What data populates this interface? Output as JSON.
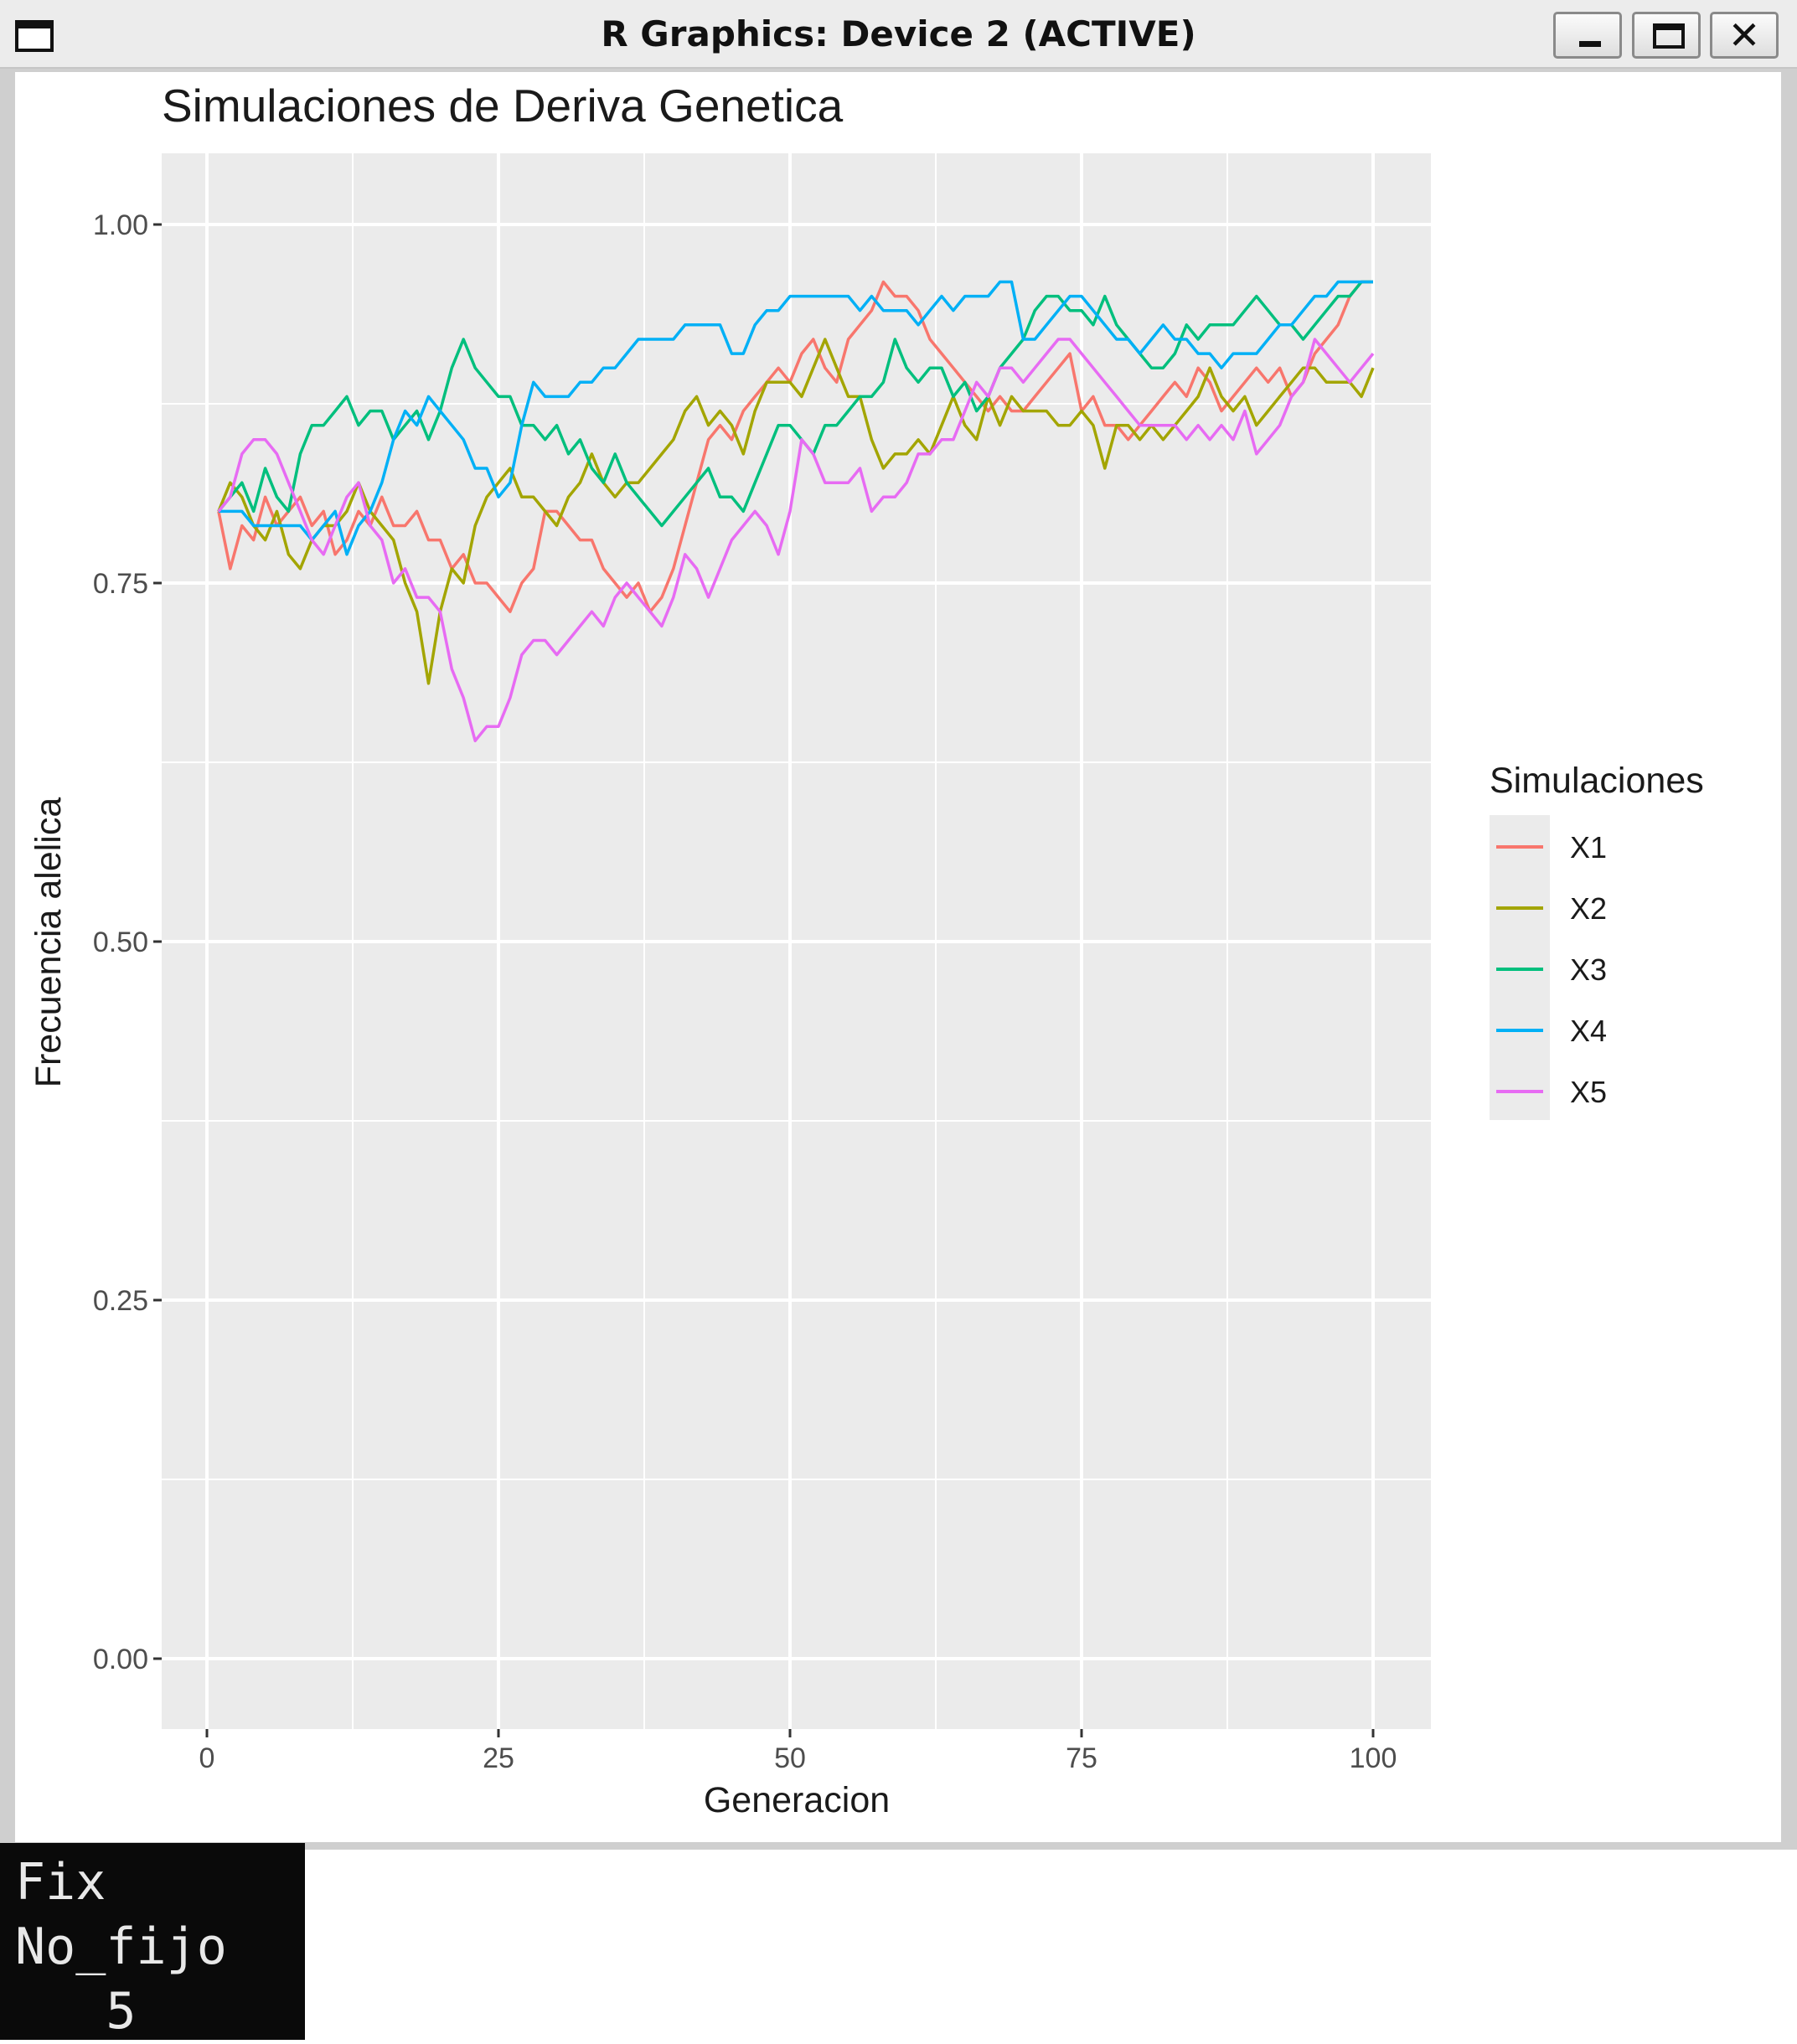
{
  "window": {
    "title": "R Graphics: Device 2 (ACTIVE)",
    "buttons": {
      "minimize": "minimize",
      "maximize": "maximize",
      "close": "✕"
    }
  },
  "terminal": {
    "lines": [
      "Fix",
      "No_fijo",
      "   5"
    ]
  },
  "colors": {
    "panel": "#EBEBEB",
    "grid": "#FFFFFF",
    "X1": "#F8766D",
    "X2": "#A3A500",
    "X3": "#00BF7D",
    "X4": "#00B0F6",
    "X5": "#E76BF3"
  },
  "chart_data": {
    "type": "line",
    "title": "Simulaciones de Deriva Genetica",
    "xlabel": "Generacion",
    "ylabel": "Frecuencia alelica",
    "xlim": [
      0,
      100
    ],
    "ylim": [
      0,
      1
    ],
    "xticks": [
      "0",
      "25",
      "50",
      "75",
      "100"
    ],
    "yticks": [
      "0.00",
      "0.25",
      "0.50",
      "0.75",
      "1.00"
    ],
    "grid": true,
    "legend": {
      "title": "Simulaciones",
      "position": "right"
    },
    "series": [
      {
        "name": "X1",
        "color": "#F8766D",
        "x": [
          1,
          2,
          3,
          4,
          5,
          6,
          7,
          8,
          9,
          10,
          11,
          12,
          13,
          14,
          15,
          16,
          17,
          18,
          19,
          20,
          21,
          22,
          23,
          24,
          25,
          26,
          27,
          28,
          29,
          30,
          31,
          32,
          33,
          34,
          35,
          36,
          37,
          38,
          39,
          40,
          41,
          42,
          43,
          44,
          45,
          46,
          47,
          48,
          49,
          50,
          51,
          52,
          53,
          54,
          55,
          56,
          57,
          58,
          59,
          60,
          61,
          62,
          63,
          64,
          65,
          66,
          67,
          68,
          69,
          70,
          71,
          72,
          73,
          74,
          75,
          76,
          77,
          78,
          79,
          80,
          81,
          82,
          83,
          84,
          85,
          86,
          87,
          88,
          89,
          90,
          91,
          92,
          93,
          94,
          95,
          96,
          97,
          98,
          99,
          100
        ],
        "y": [
          0.8,
          0.76,
          0.79,
          0.78,
          0.81,
          0.79,
          0.8,
          0.81,
          0.79,
          0.8,
          0.77,
          0.78,
          0.8,
          0.79,
          0.81,
          0.79,
          0.79,
          0.8,
          0.78,
          0.78,
          0.76,
          0.77,
          0.75,
          0.75,
          0.74,
          0.73,
          0.75,
          0.76,
          0.8,
          0.8,
          0.79,
          0.78,
          0.78,
          0.76,
          0.75,
          0.74,
          0.75,
          0.73,
          0.74,
          0.76,
          0.79,
          0.82,
          0.85,
          0.86,
          0.85,
          0.87,
          0.88,
          0.89,
          0.9,
          0.89,
          0.91,
          0.92,
          0.9,
          0.89,
          0.92,
          0.93,
          0.94,
          0.96,
          0.95,
          0.95,
          0.94,
          0.92,
          0.91,
          0.9,
          0.89,
          0.88,
          0.87,
          0.88,
          0.87,
          0.87,
          0.88,
          0.89,
          0.9,
          0.91,
          0.87,
          0.88,
          0.86,
          0.86,
          0.85,
          0.86,
          0.87,
          0.88,
          0.89,
          0.88,
          0.9,
          0.89,
          0.87,
          0.88,
          0.89,
          0.9,
          0.89,
          0.9,
          0.88,
          0.89,
          0.91,
          0.92,
          0.93,
          0.95,
          0.96,
          0.96
        ]
      },
      {
        "name": "X2",
        "color": "#A3A500",
        "x": [
          1,
          2,
          3,
          4,
          5,
          6,
          7,
          8,
          9,
          10,
          11,
          12,
          13,
          14,
          15,
          16,
          17,
          18,
          19,
          20,
          21,
          22,
          23,
          24,
          25,
          26,
          27,
          28,
          29,
          30,
          31,
          32,
          33,
          34,
          35,
          36,
          37,
          38,
          39,
          40,
          41,
          42,
          43,
          44,
          45,
          46,
          47,
          48,
          49,
          50,
          51,
          52,
          53,
          54,
          55,
          56,
          57,
          58,
          59,
          60,
          61,
          62,
          63,
          64,
          65,
          66,
          67,
          68,
          69,
          70,
          71,
          72,
          73,
          74,
          75,
          76,
          77,
          78,
          79,
          80,
          81,
          82,
          83,
          84,
          85,
          86,
          87,
          88,
          89,
          90,
          91,
          92,
          93,
          94,
          95,
          96,
          97,
          98,
          99,
          100
        ],
        "y": [
          0.8,
          0.82,
          0.81,
          0.79,
          0.78,
          0.8,
          0.77,
          0.76,
          0.78,
          0.79,
          0.79,
          0.8,
          0.82,
          0.8,
          0.79,
          0.78,
          0.75,
          0.73,
          0.68,
          0.73,
          0.76,
          0.75,
          0.79,
          0.81,
          0.82,
          0.83,
          0.81,
          0.81,
          0.8,
          0.79,
          0.81,
          0.82,
          0.84,
          0.82,
          0.81,
          0.82,
          0.82,
          0.83,
          0.84,
          0.85,
          0.87,
          0.88,
          0.86,
          0.87,
          0.86,
          0.84,
          0.87,
          0.89,
          0.89,
          0.89,
          0.88,
          0.9,
          0.92,
          0.9,
          0.88,
          0.88,
          0.85,
          0.83,
          0.84,
          0.84,
          0.85,
          0.84,
          0.86,
          0.88,
          0.86,
          0.85,
          0.88,
          0.86,
          0.88,
          0.87,
          0.87,
          0.87,
          0.86,
          0.86,
          0.87,
          0.86,
          0.83,
          0.86,
          0.86,
          0.85,
          0.86,
          0.85,
          0.86,
          0.87,
          0.88,
          0.9,
          0.88,
          0.87,
          0.88,
          0.86,
          0.87,
          0.88,
          0.89,
          0.9,
          0.9,
          0.89,
          0.89,
          0.89,
          0.88,
          0.9
        ]
      },
      {
        "name": "X3",
        "color": "#00BF7D",
        "x": [
          1,
          2,
          3,
          4,
          5,
          6,
          7,
          8,
          9,
          10,
          11,
          12,
          13,
          14,
          15,
          16,
          17,
          18,
          19,
          20,
          21,
          22,
          23,
          24,
          25,
          26,
          27,
          28,
          29,
          30,
          31,
          32,
          33,
          34,
          35,
          36,
          37,
          38,
          39,
          40,
          41,
          42,
          43,
          44,
          45,
          46,
          47,
          48,
          49,
          50,
          51,
          52,
          53,
          54,
          55,
          56,
          57,
          58,
          59,
          60,
          61,
          62,
          63,
          64,
          65,
          66,
          67,
          68,
          69,
          70,
          71,
          72,
          73,
          74,
          75,
          76,
          77,
          78,
          79,
          80,
          81,
          82,
          83,
          84,
          85,
          86,
          87,
          88,
          89,
          90,
          91,
          92,
          93,
          94,
          95,
          96,
          97,
          98,
          99,
          100
        ],
        "y": [
          0.8,
          0.81,
          0.82,
          0.8,
          0.83,
          0.81,
          0.8,
          0.84,
          0.86,
          0.86,
          0.87,
          0.88,
          0.86,
          0.87,
          0.87,
          0.85,
          0.86,
          0.87,
          0.85,
          0.87,
          0.9,
          0.92,
          0.9,
          0.89,
          0.88,
          0.88,
          0.86,
          0.86,
          0.85,
          0.86,
          0.84,
          0.85,
          0.83,
          0.82,
          0.84,
          0.82,
          0.81,
          0.8,
          0.79,
          0.8,
          0.81,
          0.82,
          0.83,
          0.81,
          0.81,
          0.8,
          0.82,
          0.84,
          0.86,
          0.86,
          0.85,
          0.84,
          0.86,
          0.86,
          0.87,
          0.88,
          0.88,
          0.89,
          0.92,
          0.9,
          0.89,
          0.9,
          0.9,
          0.88,
          0.89,
          0.87,
          0.88,
          0.9,
          0.91,
          0.92,
          0.94,
          0.95,
          0.95,
          0.94,
          0.94,
          0.93,
          0.95,
          0.93,
          0.92,
          0.91,
          0.9,
          0.9,
          0.91,
          0.93,
          0.92,
          0.93,
          0.93,
          0.93,
          0.94,
          0.95,
          0.94,
          0.93,
          0.93,
          0.92,
          0.93,
          0.94,
          0.95,
          0.95,
          0.96,
          0.96
        ]
      },
      {
        "name": "X4",
        "color": "#00B0F6",
        "x": [
          1,
          2,
          3,
          4,
          5,
          6,
          7,
          8,
          9,
          10,
          11,
          12,
          13,
          14,
          15,
          16,
          17,
          18,
          19,
          20,
          21,
          22,
          23,
          24,
          25,
          26,
          27,
          28,
          29,
          30,
          31,
          32,
          33,
          34,
          35,
          36,
          37,
          38,
          39,
          40,
          41,
          42,
          43,
          44,
          45,
          46,
          47,
          48,
          49,
          50,
          51,
          52,
          53,
          54,
          55,
          56,
          57,
          58,
          59,
          60,
          61,
          62,
          63,
          64,
          65,
          66,
          67,
          68,
          69,
          70,
          71,
          72,
          73,
          74,
          75,
          76,
          77,
          78,
          79,
          80,
          81,
          82,
          83,
          84,
          85,
          86,
          87,
          88,
          89,
          90,
          91,
          92,
          93,
          94,
          95,
          96,
          97,
          98,
          99,
          100
        ],
        "y": [
          0.8,
          0.8,
          0.8,
          0.79,
          0.79,
          0.79,
          0.79,
          0.79,
          0.78,
          0.79,
          0.8,
          0.77,
          0.79,
          0.8,
          0.82,
          0.85,
          0.87,
          0.86,
          0.88,
          0.87,
          0.86,
          0.85,
          0.83,
          0.83,
          0.81,
          0.82,
          0.86,
          0.89,
          0.88,
          0.88,
          0.88,
          0.89,
          0.89,
          0.9,
          0.9,
          0.91,
          0.92,
          0.92,
          0.92,
          0.92,
          0.93,
          0.93,
          0.93,
          0.93,
          0.91,
          0.91,
          0.93,
          0.94,
          0.94,
          0.95,
          0.95,
          0.95,
          0.95,
          0.95,
          0.95,
          0.94,
          0.95,
          0.94,
          0.94,
          0.94,
          0.93,
          0.94,
          0.95,
          0.94,
          0.95,
          0.95,
          0.95,
          0.96,
          0.96,
          0.92,
          0.92,
          0.93,
          0.94,
          0.95,
          0.95,
          0.94,
          0.93,
          0.92,
          0.92,
          0.91,
          0.92,
          0.93,
          0.92,
          0.92,
          0.91,
          0.91,
          0.9,
          0.91,
          0.91,
          0.91,
          0.92,
          0.93,
          0.93,
          0.94,
          0.95,
          0.95,
          0.96,
          0.96,
          0.96,
          0.96
        ]
      },
      {
        "name": "X5",
        "color": "#E76BF3",
        "x": [
          1,
          2,
          3,
          4,
          5,
          6,
          7,
          8,
          9,
          10,
          11,
          12,
          13,
          14,
          15,
          16,
          17,
          18,
          19,
          20,
          21,
          22,
          23,
          24,
          25,
          26,
          27,
          28,
          29,
          30,
          31,
          32,
          33,
          34,
          35,
          36,
          37,
          38,
          39,
          40,
          41,
          42,
          43,
          44,
          45,
          46,
          47,
          48,
          49,
          50,
          51,
          52,
          53,
          54,
          55,
          56,
          57,
          58,
          59,
          60,
          61,
          62,
          63,
          64,
          65,
          66,
          67,
          68,
          69,
          70,
          71,
          72,
          73,
          74,
          75,
          76,
          77,
          78,
          79,
          80,
          81,
          82,
          83,
          84,
          85,
          86,
          87,
          88,
          89,
          90,
          91,
          92,
          93,
          94,
          95,
          96,
          97,
          98,
          99,
          100
        ],
        "y": [
          0.8,
          0.81,
          0.84,
          0.85,
          0.85,
          0.84,
          0.82,
          0.8,
          0.78,
          0.77,
          0.79,
          0.81,
          0.82,
          0.79,
          0.78,
          0.75,
          0.76,
          0.74,
          0.74,
          0.73,
          0.69,
          0.67,
          0.64,
          0.65,
          0.65,
          0.67,
          0.7,
          0.71,
          0.71,
          0.7,
          0.71,
          0.72,
          0.73,
          0.72,
          0.74,
          0.75,
          0.74,
          0.73,
          0.72,
          0.74,
          0.77,
          0.76,
          0.74,
          0.76,
          0.78,
          0.79,
          0.8,
          0.79,
          0.77,
          0.8,
          0.85,
          0.84,
          0.82,
          0.82,
          0.82,
          0.83,
          0.8,
          0.81,
          0.81,
          0.82,
          0.84,
          0.84,
          0.85,
          0.85,
          0.87,
          0.89,
          0.88,
          0.9,
          0.9,
          0.89,
          0.9,
          0.91,
          0.92,
          0.92,
          0.91,
          0.9,
          0.89,
          0.88,
          0.87,
          0.86,
          0.86,
          0.86,
          0.86,
          0.85,
          0.86,
          0.85,
          0.86,
          0.85,
          0.87,
          0.84,
          0.85,
          0.86,
          0.88,
          0.89,
          0.92,
          0.91,
          0.9,
          0.89,
          0.9,
          0.91
        ]
      }
    ]
  }
}
